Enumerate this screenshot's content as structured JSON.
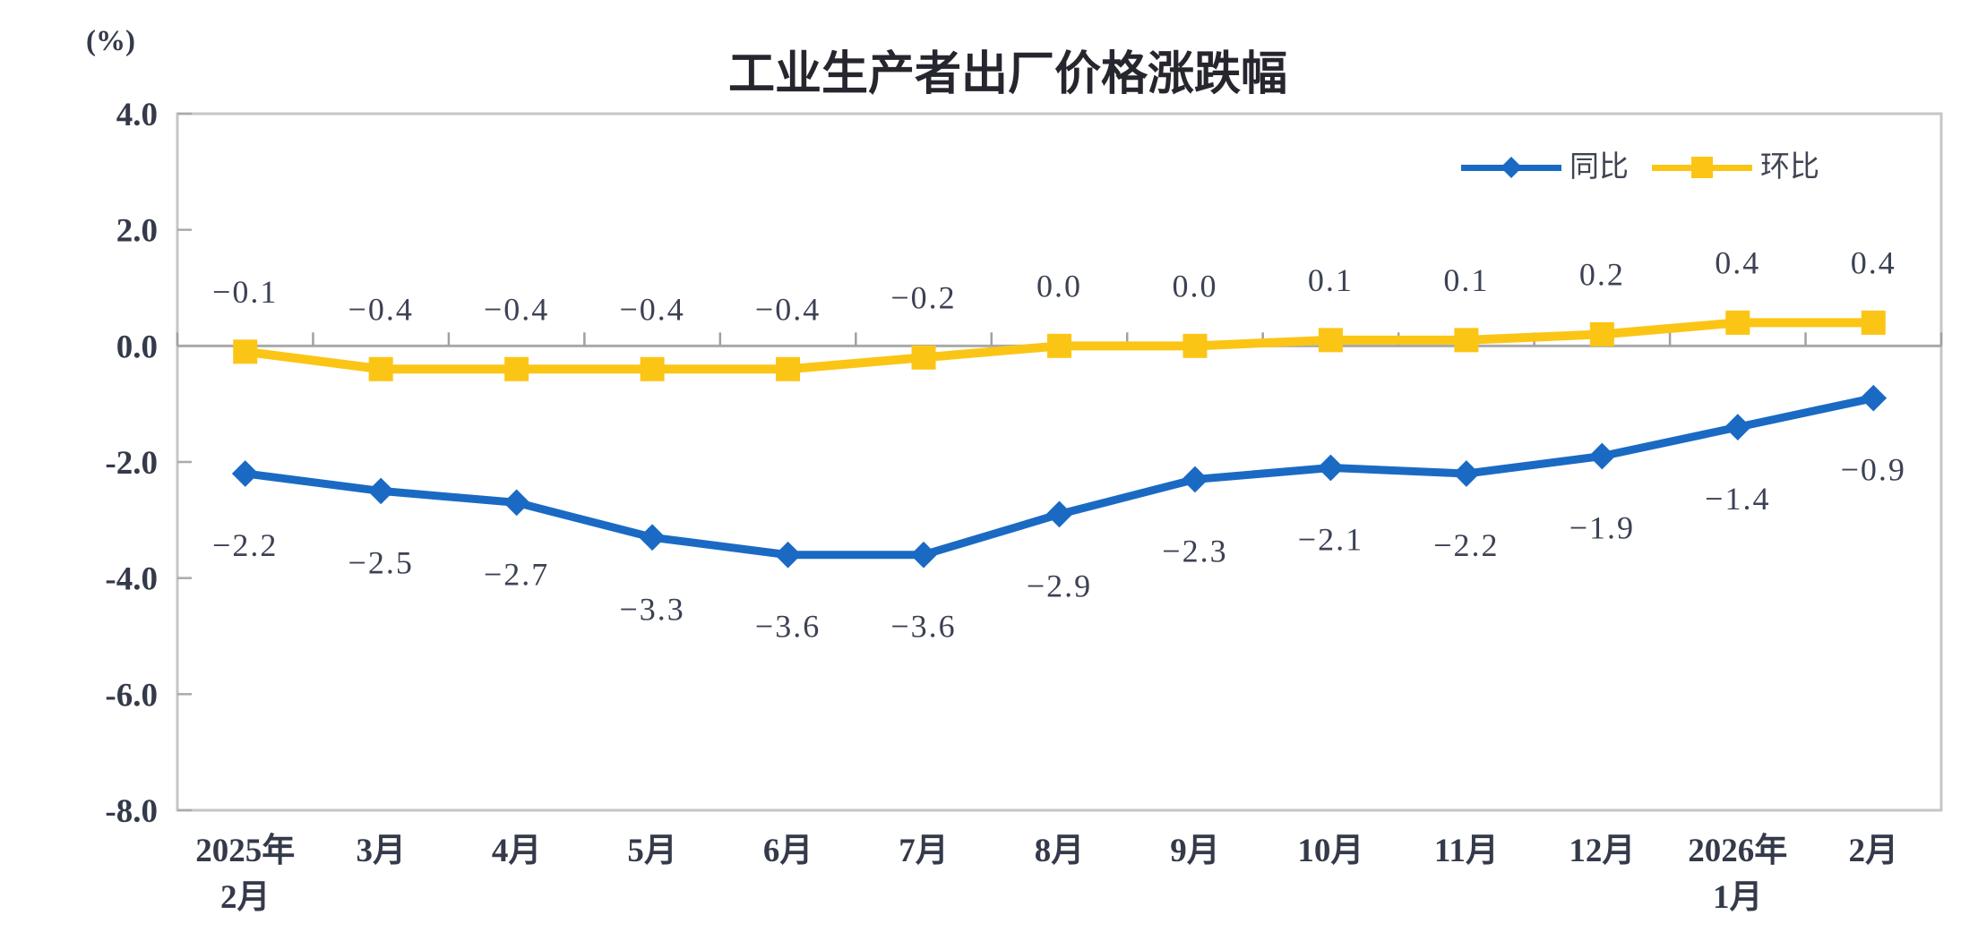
{
  "chart_data": {
    "type": "line",
    "title": "工业生产者出厂价格涨跌幅",
    "unit": "(%)",
    "categories": [
      [
        "2025年",
        "2月"
      ],
      [
        "3月"
      ],
      [
        "4月"
      ],
      [
        "5月"
      ],
      [
        "6月"
      ],
      [
        "7月"
      ],
      [
        "8月"
      ],
      [
        "9月"
      ],
      [
        "10月"
      ],
      [
        "11月"
      ],
      [
        "12月"
      ],
      [
        "2026年",
        "1月"
      ],
      [
        "2月"
      ]
    ],
    "series": [
      {
        "name": "同比",
        "marker": "diamond",
        "color": "#1A6AC4",
        "values": [
          -2.2,
          -2.5,
          -2.7,
          -3.3,
          -3.6,
          -3.6,
          -2.9,
          -2.3,
          -2.1,
          -2.2,
          -1.9,
          -1.4,
          -0.9
        ],
        "labels": [
          "−2.2",
          "−2.5",
          "−2.7",
          "−3.3",
          "−3.6",
          "−3.6",
          "−2.9",
          "−2.3",
          "−2.1",
          "−2.2",
          "−1.9",
          "−1.4",
          "−0.9"
        ],
        "label_position": "below"
      },
      {
        "name": "环比",
        "marker": "square",
        "color": "#FBC515",
        "values": [
          -0.1,
          -0.4,
          -0.4,
          -0.4,
          -0.4,
          -0.2,
          0,
          0,
          0.1,
          0.1,
          0.2,
          0.4,
          0.4
        ],
        "labels": [
          "−0.1",
          "−0.4",
          "−0.4",
          "−0.4",
          "−0.4",
          "−0.2",
          "0.0",
          "0.0",
          "0.1",
          "0.1",
          "0.2",
          "0.4",
          "0.4"
        ],
        "label_position": "above"
      }
    ],
    "ylim": [
      -8,
      4
    ],
    "y_ticks": {
      "values": [
        4,
        2,
        0,
        -2,
        -4,
        -6,
        -8
      ],
      "labels": [
        "4.0",
        "2.0",
        "0.0",
        "-2.0",
        "-4.0",
        "-6.0",
        "-8.0"
      ]
    },
    "grid": false,
    "legend_position": "top-right"
  }
}
